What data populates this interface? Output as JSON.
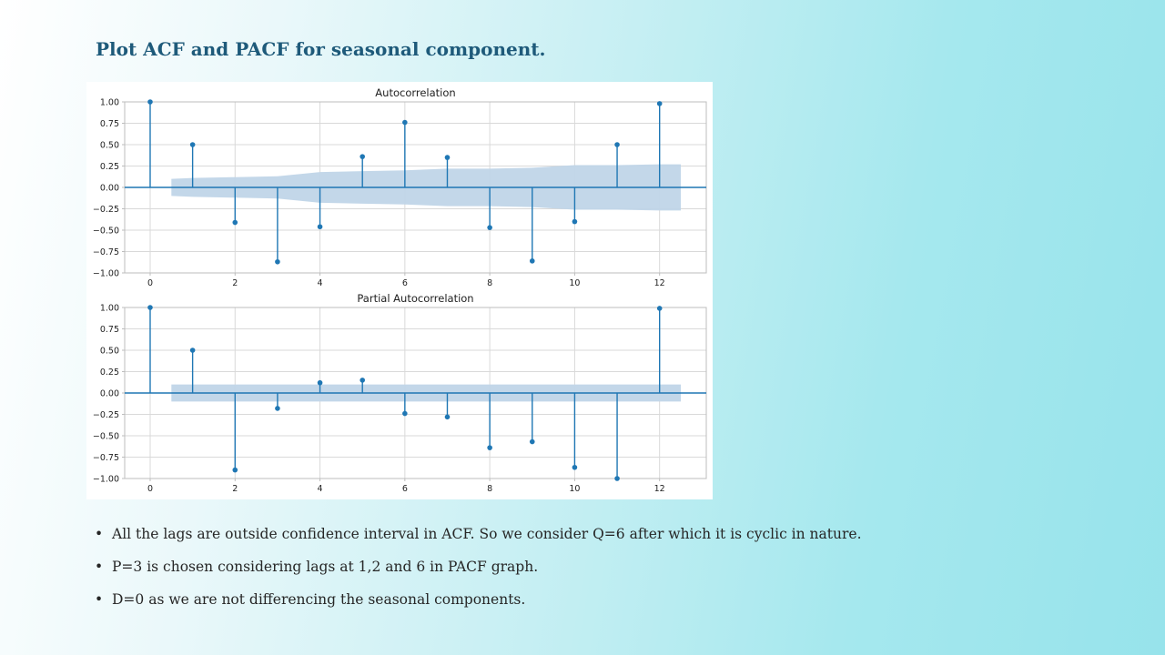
{
  "slide": {
    "title": "Plot ACF and PACF for seasonal component.",
    "bullets": [
      "All the lags are outside confidence interval  in ACF. So we consider Q=6 after which it is cyclic in nature.",
      "P=3 is chosen considering lags at 1,2 and 6 in PACF graph.",
      "D=0 as we are not differencing the seasonal components."
    ]
  },
  "colors": {
    "stem": "#1f77b4",
    "confidence_band": "#c0d5e8",
    "grid": "#d9d9d9",
    "axis": "#bdbdbd"
  },
  "chart_data": [
    {
      "type": "stem",
      "title": "Autocorrelation",
      "xlim": [
        -0.6,
        13.1
      ],
      "ylim": [
        -1.0,
        1.0
      ],
      "x_ticks": [
        0,
        2,
        4,
        6,
        8,
        10,
        12
      ],
      "y_ticks": [
        1.0,
        0.75,
        0.5,
        0.25,
        0.0,
        -0.25,
        -0.5,
        -0.75,
        -1.0
      ],
      "y_tick_labels": [
        "1.00",
        "0.75",
        "0.50",
        "0.25",
        "0.00",
        "−0.25",
        "−0.50",
        "−0.75",
        "−1.00"
      ],
      "grid": true,
      "lags": [
        0,
        1,
        2,
        3,
        4,
        5,
        6,
        7,
        8,
        9,
        10,
        11,
        12
      ],
      "values": [
        1.0,
        0.5,
        -0.41,
        -0.87,
        -0.46,
        0.36,
        0.76,
        0.35,
        -0.47,
        -0.86,
        -0.4,
        0.5,
        0.98
      ],
      "confidence_band": {
        "x": [
          0.5,
          1,
          2,
          3,
          4,
          5,
          6,
          7,
          8,
          9,
          10,
          11,
          12,
          12.5
        ],
        "upper": [
          0.1,
          0.11,
          0.12,
          0.13,
          0.18,
          0.19,
          0.2,
          0.22,
          0.22,
          0.23,
          0.26,
          0.26,
          0.27,
          0.27
        ],
        "lower": [
          -0.1,
          -0.11,
          -0.12,
          -0.13,
          -0.18,
          -0.19,
          -0.2,
          -0.22,
          -0.22,
          -0.23,
          -0.26,
          -0.26,
          -0.27,
          -0.27
        ]
      }
    },
    {
      "type": "stem",
      "title": "Partial Autocorrelation",
      "xlim": [
        -0.6,
        13.1
      ],
      "ylim": [
        -1.0,
        1.0
      ],
      "x_ticks": [
        0,
        2,
        4,
        6,
        8,
        10,
        12
      ],
      "y_ticks": [
        1.0,
        0.75,
        0.5,
        0.25,
        0.0,
        -0.25,
        -0.5,
        -0.75,
        -1.0
      ],
      "y_tick_labels": [
        "1.00",
        "0.75",
        "0.50",
        "0.25",
        "0.00",
        "−0.25",
        "−0.50",
        "−0.75",
        "−1.00"
      ],
      "grid": true,
      "lags": [
        0,
        1,
        2,
        3,
        4,
        5,
        6,
        7,
        8,
        9,
        10,
        11,
        12
      ],
      "values": [
        1.0,
        0.5,
        -0.9,
        -0.18,
        0.12,
        0.15,
        -0.24,
        -0.28,
        -0.64,
        -0.57,
        -0.87,
        -1.0,
        0.99
      ],
      "confidence_band": {
        "x": [
          0.5,
          12.5
        ],
        "upper": [
          0.1,
          0.1
        ],
        "lower": [
          -0.1,
          -0.1
        ]
      }
    }
  ]
}
